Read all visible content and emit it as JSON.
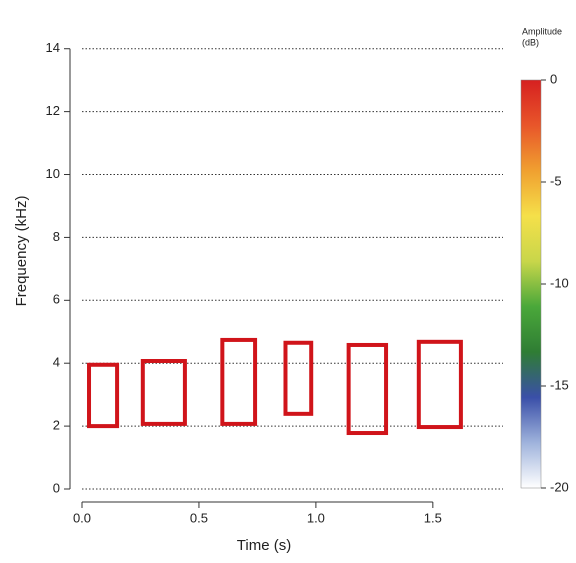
{
  "chart_data": {
    "type": "spectrogram",
    "xlabel": "Time (s)",
    "ylabel": "Frequency (kHz)",
    "xlim": [
      0,
      1.8
    ],
    "xticks": [
      {
        "value": 0,
        "label": "0.0"
      },
      0.5,
      {
        "value": 1,
        "label": "1.0"
      },
      1.5
    ],
    "ylim": [
      0,
      14.5
    ],
    "yticks": [
      0,
      2,
      4,
      6,
      8,
      10,
      12,
      14
    ],
    "grid": true,
    "box_color": "#d0141a",
    "boxes": [
      {
        "x": [
          0.03,
          0.15
        ],
        "y": [
          2.0,
          3.95
        ]
      },
      {
        "x": [
          0.26,
          0.44
        ],
        "y": [
          2.07,
          4.07
        ]
      },
      {
        "x": [
          0.6,
          0.74
        ],
        "y": [
          2.07,
          4.74
        ]
      },
      {
        "x": [
          0.87,
          0.98
        ],
        "y": [
          2.39,
          4.65
        ]
      },
      {
        "x": [
          1.14,
          1.3
        ],
        "y": [
          1.78,
          4.58
        ]
      },
      {
        "x": [
          1.44,
          1.62
        ],
        "y": [
          1.97,
          4.68
        ]
      }
    ],
    "colorbar_title": [
      "Amplitude",
      "(dB)"
    ],
    "zlim": [
      -20,
      0
    ],
    "zticks": [
      0,
      -5,
      -10,
      -15,
      -20
    ],
    "colormap": [
      "#ffffff",
      "#9fb3dc",
      "#3a4fa8",
      "#2f7d34",
      "#4aa83a",
      "#c8d64a",
      "#f5e04a",
      "#f0a030",
      "#e8562a",
      "#d62020"
    ]
  }
}
